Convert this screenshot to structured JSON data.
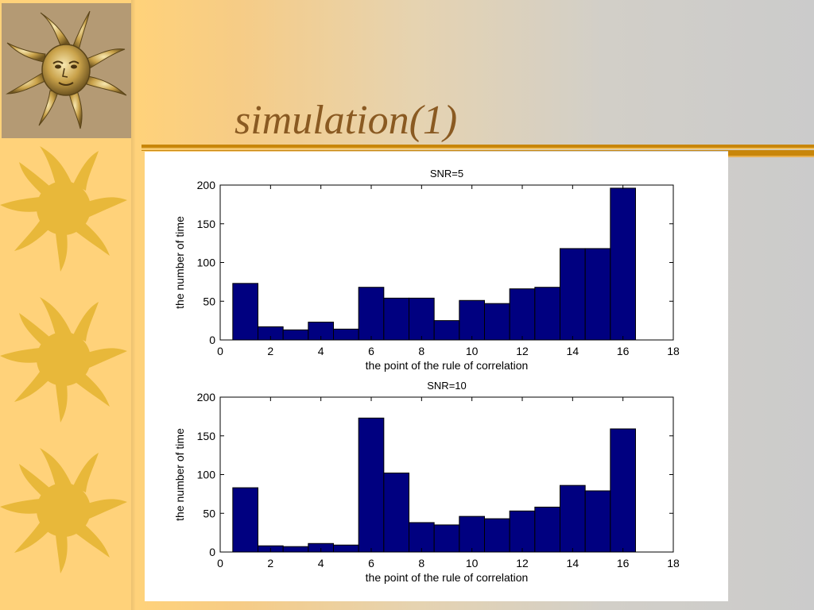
{
  "slide": {
    "title": "simulation(1)",
    "colors": {
      "sidebar": "#ffd27a",
      "sun": "#e8b83a",
      "title": "#8a5a22",
      "rule": "#c8860a",
      "bar_fill": "#000080"
    },
    "icons": [
      "golden-sun-face-icon",
      "sun-icon",
      "sun-icon",
      "sun-icon"
    ]
  },
  "chart_data": [
    {
      "type": "bar",
      "title": "SNR=5",
      "xlabel": "the point of the rule of correlation",
      "ylabel": "the number of time",
      "x": [
        1,
        2,
        3,
        4,
        5,
        6,
        7,
        8,
        9,
        10,
        11,
        12,
        13,
        14,
        15,
        16
      ],
      "values": [
        73,
        17,
        13,
        23,
        14,
        68,
        54,
        54,
        25,
        51,
        47,
        66,
        68,
        118,
        118,
        196
      ],
      "xlim": [
        0,
        18
      ],
      "ylim": [
        0,
        200
      ],
      "xticks": [
        0,
        2,
        4,
        6,
        8,
        10,
        12,
        14,
        16,
        18
      ],
      "yticks": [
        0,
        50,
        100,
        150,
        200
      ],
      "bar_color": "#000080",
      "grid": false
    },
    {
      "type": "bar",
      "title": "SNR=10",
      "xlabel": "the point of the rule of correlation",
      "ylabel": "the number of time",
      "x": [
        1,
        2,
        3,
        4,
        5,
        6,
        7,
        8,
        9,
        10,
        11,
        12,
        13,
        14,
        15,
        16
      ],
      "values": [
        83,
        8,
        7,
        11,
        9,
        173,
        102,
        38,
        35,
        46,
        43,
        53,
        58,
        86,
        79,
        159
      ],
      "xlim": [
        0,
        18
      ],
      "ylim": [
        0,
        200
      ],
      "xticks": [
        0,
        2,
        4,
        6,
        8,
        10,
        12,
        14,
        16,
        18
      ],
      "yticks": [
        0,
        50,
        100,
        150,
        200
      ],
      "bar_color": "#000080",
      "grid": false
    }
  ]
}
